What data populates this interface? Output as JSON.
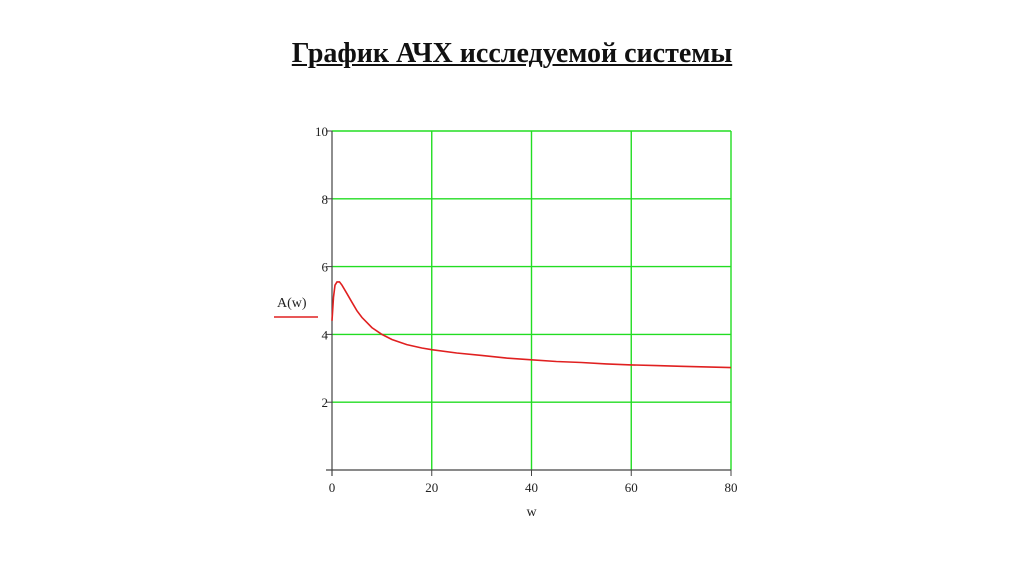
{
  "slide": {
    "title": "График АЧХ исследуемой системы"
  },
  "chart_data": {
    "type": "line",
    "title": "",
    "xlabel": "w",
    "ylabel": "A(w)",
    "xlim": [
      0,
      80
    ],
    "ylim": [
      0,
      10
    ],
    "xticks": [
      0,
      20,
      40,
      60,
      80
    ],
    "yticks": [
      2,
      4,
      6,
      8,
      10
    ],
    "grid": true,
    "colors": {
      "grid": "#22dd22",
      "axis": "#444444",
      "series": "#e02020"
    },
    "series": [
      {
        "name": "A(w)",
        "x": [
          0,
          0.3,
          0.6,
          1,
          1.5,
          2,
          3,
          4,
          5,
          6,
          8,
          10,
          12,
          15,
          18,
          20,
          25,
          30,
          35,
          40,
          45,
          50,
          55,
          60,
          65,
          70,
          75,
          80
        ],
        "y": [
          4.4,
          5.1,
          5.45,
          5.55,
          5.55,
          5.45,
          5.2,
          4.95,
          4.7,
          4.5,
          4.2,
          4.0,
          3.85,
          3.7,
          3.6,
          3.55,
          3.45,
          3.38,
          3.3,
          3.25,
          3.2,
          3.17,
          3.13,
          3.1,
          3.08,
          3.06,
          3.04,
          3.02
        ]
      }
    ]
  }
}
